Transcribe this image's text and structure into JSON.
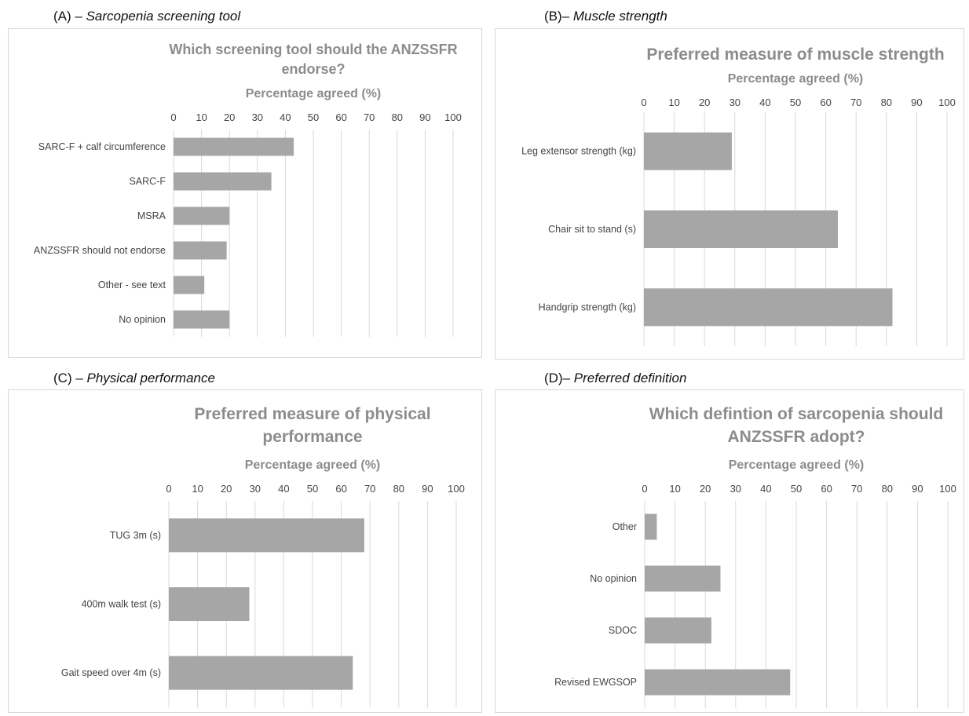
{
  "panels": [
    {
      "tag": "(A) – ",
      "subtitle": "Sarcopenia screening tool"
    },
    {
      "tag": "(B)– ",
      "subtitle": "Muscle strength"
    },
    {
      "tag": "(C) – ",
      "subtitle": "Physical performance"
    },
    {
      "tag": "(D)– ",
      "subtitle": "Preferred definition"
    }
  ],
  "colors": {
    "bar": "#a6a6a6",
    "title": "#8c8c8c",
    "grid": "#d9d9d9",
    "tick": "#444444"
  },
  "chart_data": [
    {
      "type": "bar",
      "orientation": "horizontal",
      "title": [
        "Which screening tool should the ANZSSFR",
        "endorse?"
      ],
      "xlabel": "Percentage agreed (%)",
      "xlim": [
        0,
        100
      ],
      "xticks": [
        "0",
        "10",
        "20",
        "30",
        "40",
        "50",
        "60",
        "70",
        "80",
        "90",
        "100"
      ],
      "categories": [
        "SARC-F + calf circumference",
        "SARC-F",
        "MSRA",
        "ANZSSFR should not endorse",
        "Other - see text",
        "No opinion"
      ],
      "values": [
        43,
        35,
        20,
        19,
        11,
        20
      ]
    },
    {
      "type": "bar",
      "orientation": "horizontal",
      "title": [
        "Preferred measure of muscle strength"
      ],
      "xlabel": "Percentage agreed (%)",
      "xlim": [
        0,
        100
      ],
      "xticks": [
        "0",
        "10",
        "20",
        "30",
        "40",
        "50",
        "60",
        "70",
        "80",
        "90",
        "100"
      ],
      "categories": [
        "Leg extensor strength (kg)",
        "Chair sit to stand (s)",
        "Handgrip strength (kg)"
      ],
      "values": [
        29,
        64,
        82
      ]
    },
    {
      "type": "bar",
      "orientation": "horizontal",
      "title": [
        "Preferred measure of physical",
        "performance"
      ],
      "xlabel": "Percentage agreed (%)",
      "xlim": [
        0,
        100
      ],
      "xticks": [
        "0",
        "10",
        "20",
        "30",
        "40",
        "50",
        "60",
        "70",
        "80",
        "90",
        "100"
      ],
      "categories": [
        "TUG 3m (s)",
        "400m walk test (s)",
        "Gait speed over 4m (s)"
      ],
      "values": [
        68,
        28,
        64
      ]
    },
    {
      "type": "bar",
      "orientation": "horizontal",
      "title": [
        "Which defintion of sarcopenia should",
        "ANZSSFR adopt?"
      ],
      "xlabel": "Percentage agreed (%)",
      "xlim": [
        0,
        100
      ],
      "xticks": [
        "0",
        "10",
        "20",
        "30",
        "40",
        "50",
        "60",
        "70",
        "80",
        "90",
        "100"
      ],
      "categories": [
        "Other",
        "No opinion",
        "SDOC",
        "Revised EWGSOP"
      ],
      "values": [
        4,
        25,
        22,
        48
      ]
    }
  ]
}
